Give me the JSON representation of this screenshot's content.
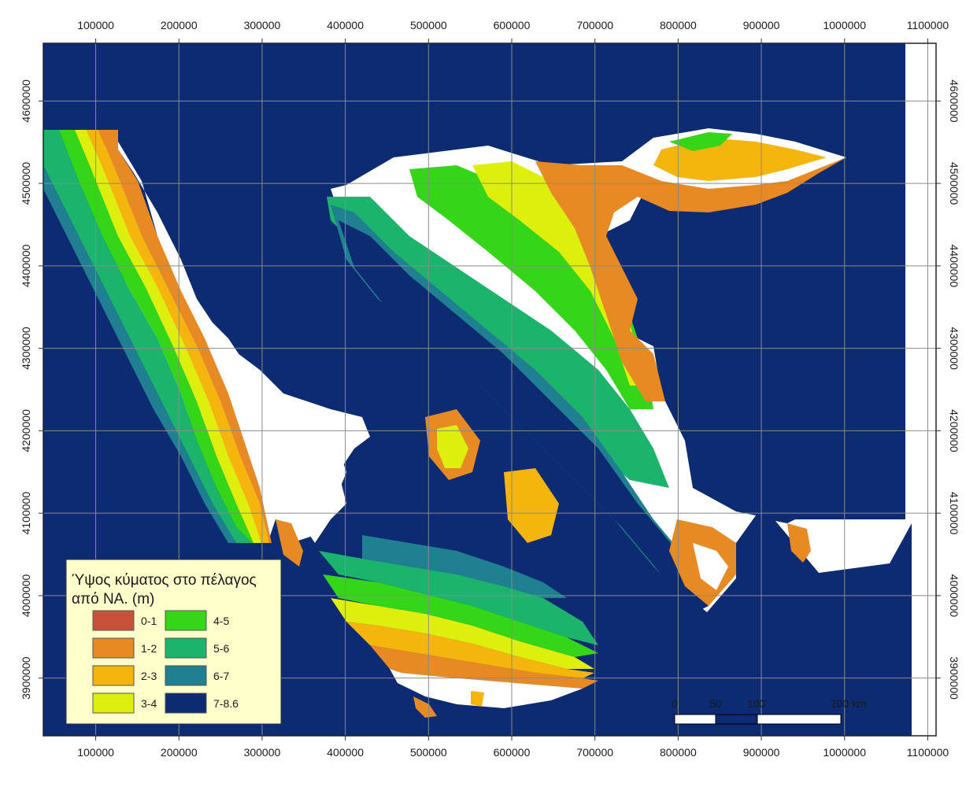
{
  "palette": {
    "c0": "#c65339",
    "c1": "#e78a23",
    "c2": "#f5b50c",
    "c3": "#deef0e",
    "c4": "#35d51a",
    "c5": "#1cb46c",
    "c6": "#1e8090",
    "c7": "#0c2b73"
  },
  "frame": {
    "x_min": 37000,
    "x_max": 1110000,
    "y_min": 3830000,
    "y_max": 4670000
  },
  "x_ticks": [
    "100000",
    "200000",
    "300000",
    "400000",
    "500000",
    "600000",
    "700000",
    "800000",
    "900000",
    "1000000",
    "1100000"
  ],
  "y_ticks": [
    "3900000",
    "4000000",
    "4100000",
    "4200000",
    "4300000",
    "4400000",
    "4500000",
    "4600000"
  ],
  "legend": {
    "title_line1": "Ύψος κύματος στο πέλαγος",
    "title_line2": "από  ΝΑ. (m)",
    "classes": [
      {
        "label": "0-1",
        "color": "#c65339"
      },
      {
        "label": "1-2",
        "color": "#e78a23"
      },
      {
        "label": "2-3",
        "color": "#f5b50c"
      },
      {
        "label": "3-4",
        "color": "#deef0e"
      },
      {
        "label": "4-5",
        "color": "#35d51a"
      },
      {
        "label": "5-6",
        "color": "#1cb46c"
      },
      {
        "label": "6-7",
        "color": "#1e8090"
      },
      {
        "label": "7-8.6",
        "color": "#0c2b73"
      }
    ]
  },
  "scalebar": {
    "labels": [
      "0",
      "50",
      "100",
      "200 km"
    ]
  }
}
